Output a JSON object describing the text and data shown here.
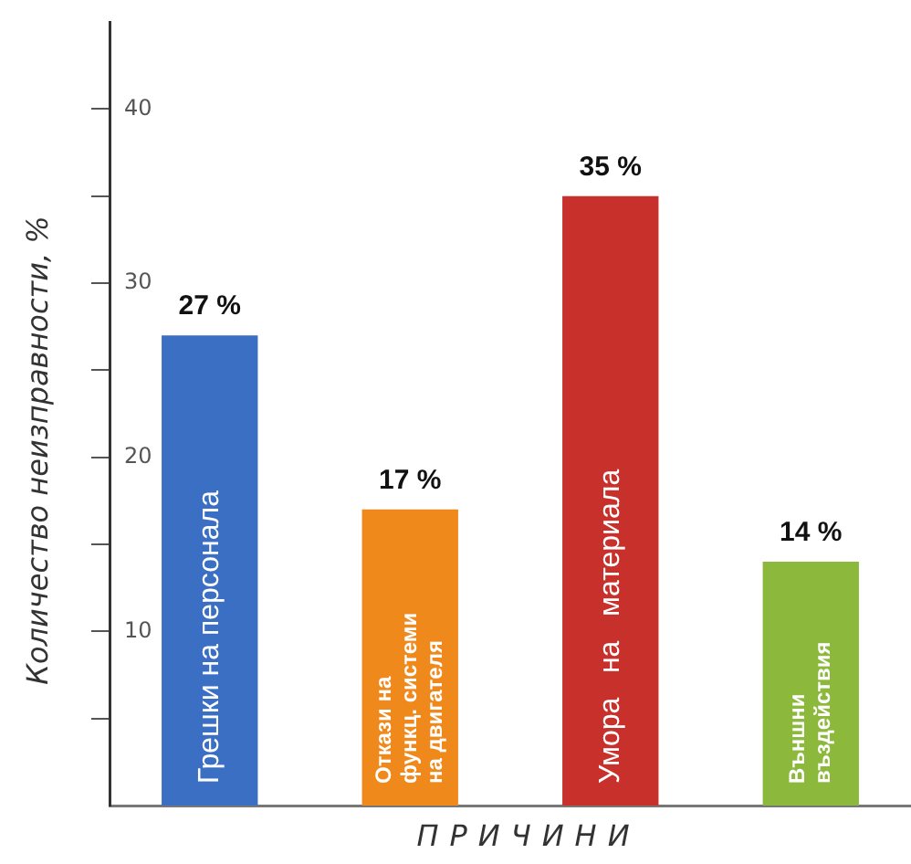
{
  "chart_data": {
    "type": "bar",
    "xlabel": "ПРИЧИНИ",
    "ylabel": "Количество неизправности, %",
    "categories": [
      "Грешки на персонала",
      "Откази на\nфункц. системи\nна двигателя",
      "Умора   на   материала",
      "Външни\nвъздействия"
    ],
    "values": [
      27,
      17,
      35,
      14
    ],
    "colors": [
      "#3a6fc4",
      "#f0891c",
      "#c8302c",
      "#8cb83b"
    ],
    "value_labels": [
      "27 %",
      "17 %",
      "35 %",
      "14 %"
    ],
    "ylim": [
      0,
      45
    ],
    "yticks": [
      {
        "value": 5,
        "label": null
      },
      10,
      {
        "value": 15,
        "label": null
      },
      20,
      {
        "value": 25,
        "label": null
      },
      30,
      {
        "value": 35,
        "label": null
      },
      40
    ],
    "grid": false,
    "legend": false
  }
}
